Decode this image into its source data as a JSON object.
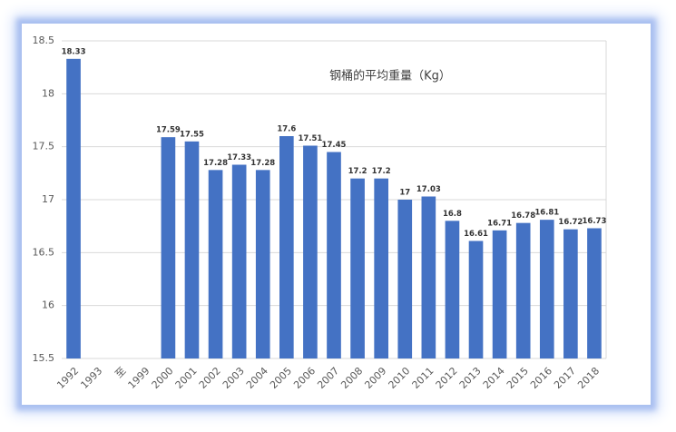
{
  "chart_data": {
    "type": "bar",
    "title": "钢桶的平均重量（Kg）",
    "categories": [
      "1992",
      "1993",
      "至",
      "1999",
      "2000",
      "2001",
      "2002",
      "2003",
      "2004",
      "2005",
      "2006",
      "2007",
      "2008",
      "2009",
      "2010",
      "2011",
      "2012",
      "2013",
      "2014",
      "2015",
      "2016",
      "2017",
      "2018"
    ],
    "values": [
      18.33,
      null,
      null,
      null,
      17.59,
      17.55,
      17.28,
      17.33,
      17.28,
      17.6,
      17.51,
      17.45,
      17.2,
      17.2,
      17,
      17.03,
      16.8,
      16.61,
      16.71,
      16.78,
      16.81,
      16.72,
      16.73
    ],
    "color": "#4472c4",
    "ylim": [
      15.5,
      18.5
    ],
    "yticks": [
      15.5,
      16,
      16.5,
      17,
      17.5,
      18,
      18.5
    ],
    "grid": true
  }
}
